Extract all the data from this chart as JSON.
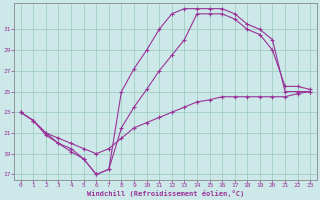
{
  "title": "",
  "xlabel": "Windchill (Refroidissement éolien,°C)",
  "ylabel": "",
  "bg_color": "#cce8e8",
  "line_color": "#993399",
  "xlim": [
    -0.5,
    23.5
  ],
  "ylim": [
    16.5,
    33.5
  ],
  "xticks": [
    0,
    1,
    2,
    3,
    4,
    5,
    6,
    7,
    8,
    9,
    10,
    11,
    12,
    13,
    14,
    15,
    16,
    17,
    18,
    19,
    20,
    21,
    22,
    23
  ],
  "yticks": [
    17,
    19,
    21,
    23,
    25,
    27,
    29,
    31
  ],
  "grid_color": "#99ccbb",
  "line1_x": [
    0,
    1,
    2,
    3,
    4,
    5,
    6,
    7,
    8,
    9,
    10,
    11,
    12,
    13,
    14,
    15,
    16,
    17,
    18,
    19,
    20,
    21,
    22,
    23
  ],
  "line1_y": [
    23.0,
    22.2,
    20.8,
    20.0,
    19.2,
    18.5,
    17.0,
    17.5,
    25.0,
    27.2,
    29.0,
    31.0,
    32.5,
    33.0,
    33.0,
    33.0,
    33.0,
    32.5,
    31.5,
    31.0,
    30.0,
    25.0,
    25.0,
    25.0
  ],
  "line2_x": [
    0,
    1,
    2,
    3,
    4,
    5,
    6,
    7,
    8,
    9,
    10,
    11,
    12,
    13,
    14,
    15,
    16,
    17,
    18,
    19,
    20,
    21,
    22,
    23
  ],
  "line2_y": [
    23.0,
    22.2,
    21.0,
    20.0,
    19.5,
    18.5,
    17.0,
    17.5,
    21.5,
    23.5,
    25.2,
    27.0,
    28.5,
    30.0,
    32.5,
    32.5,
    32.5,
    32.0,
    31.0,
    30.5,
    29.0,
    25.5,
    25.5,
    25.2
  ],
  "line3_x": [
    0,
    1,
    2,
    3,
    4,
    5,
    6,
    7,
    8,
    9,
    10,
    11,
    12,
    13,
    14,
    15,
    16,
    17,
    18,
    19,
    20,
    21,
    22,
    23
  ],
  "line3_y": [
    23.0,
    22.2,
    21.0,
    20.5,
    20.0,
    19.5,
    19.0,
    19.5,
    20.5,
    21.5,
    22.0,
    22.5,
    23.0,
    23.5,
    24.0,
    24.2,
    24.5,
    24.5,
    24.5,
    24.5,
    24.5,
    24.5,
    24.8,
    25.0
  ]
}
